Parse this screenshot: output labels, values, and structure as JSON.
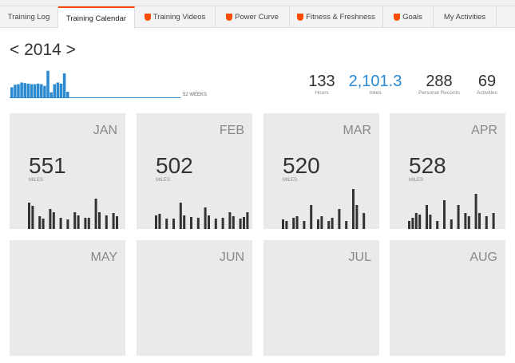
{
  "tabs": [
    {
      "label": "Training Log",
      "premium": false,
      "active": false
    },
    {
      "label": "Training Calendar",
      "premium": false,
      "active": true
    },
    {
      "label": "Training Videos",
      "premium": true,
      "active": false
    },
    {
      "label": "Power Curve",
      "premium": true,
      "active": false
    },
    {
      "label": "Fitness & Freshness",
      "premium": true,
      "active": false
    },
    {
      "label": "Goals",
      "premium": true,
      "active": false
    },
    {
      "label": "My Activities",
      "premium": false,
      "active": false
    }
  ],
  "year": {
    "prev": "<",
    "label": "2014",
    "next": ">"
  },
  "weekly": {
    "label": "52 WEEKS",
    "color": "#2b8ad0",
    "total_weeks": 52,
    "values": [
      0.36,
      0.45,
      0.47,
      0.53,
      0.51,
      0.49,
      0.47,
      0.47,
      0.49,
      0.47,
      0.41,
      0.95,
      0.18,
      0.47,
      0.53,
      0.49,
      0.86,
      0.2,
      0.0
    ]
  },
  "stats": [
    {
      "value": "133",
      "label": "Hours"
    },
    {
      "value": "2,101.3",
      "label": "miles",
      "accent": "#2b8ad0"
    },
    {
      "value": "288",
      "label": "Personal Records"
    },
    {
      "value": "69",
      "label": "Activities"
    }
  ],
  "months": [
    {
      "name": "JAN",
      "miles": "551",
      "unit": "MILES",
      "bars": [
        33,
        29,
        0,
        16,
        13,
        0,
        25,
        21,
        0,
        14,
        0,
        12,
        0,
        21,
        17,
        0,
        14,
        14,
        0,
        38,
        21,
        0,
        17,
        0,
        20,
        16
      ]
    },
    {
      "name": "FEB",
      "miles": "502",
      "unit": "MILES",
      "bars": [
        17,
        19,
        0,
        13,
        0,
        13,
        0,
        33,
        17,
        0,
        15,
        0,
        14,
        0,
        27,
        17,
        0,
        13,
        0,
        14,
        0,
        21,
        16,
        0,
        13,
        15,
        21
      ]
    },
    {
      "name": "MAR",
      "miles": "520",
      "unit": "MILES",
      "bars": [
        12,
        10,
        0,
        14,
        16,
        0,
        10,
        0,
        30,
        0,
        12,
        16,
        0,
        10,
        14,
        0,
        25,
        0,
        10,
        0,
        50,
        30,
        0,
        20
      ]
    },
    {
      "name": "APR",
      "miles": "528",
      "unit": "MILES",
      "bars": [
        10,
        14,
        20,
        18,
        0,
        30,
        18,
        0,
        10,
        0,
        36,
        0,
        12,
        0,
        30,
        0,
        20,
        16,
        0,
        44,
        20,
        0,
        16,
        0,
        20
      ]
    },
    {
      "name": "MAY",
      "miles": "",
      "unit": "",
      "bars": []
    },
    {
      "name": "JUN",
      "miles": "",
      "unit": "",
      "bars": []
    },
    {
      "name": "JUL",
      "miles": "",
      "unit": "",
      "bars": []
    },
    {
      "name": "AUG",
      "miles": "",
      "unit": "",
      "bars": []
    }
  ]
}
